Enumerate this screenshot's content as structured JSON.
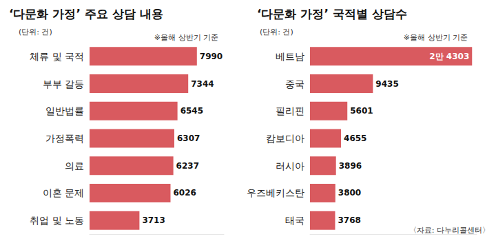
{
  "chart_data": [
    {
      "type": "bar",
      "title": "‘다문화 가정’ 주요 상담 내용",
      "subtitle": "(단위: 건)",
      "annotations": [
        "※올해 상반기 기준"
      ],
      "categories": [
        "체류 및 국적",
        "부부 갈등",
        "일반법률",
        "가정폭력",
        "의료",
        "이혼 문제",
        "취업 및 노동"
      ],
      "values": [
        7990,
        7344,
        6545,
        6307,
        6237,
        6026,
        3713
      ],
      "color": "#d95a5f",
      "orientation": "horizontal",
      "data_labels": true,
      "tick_labels": "y",
      "xlim": [
        0,
        10000
      ]
    },
    {
      "type": "bar",
      "title": "‘다문화 가정’ 국적별 상담수",
      "subtitle": "(단위: 건)",
      "annotations": [
        "※올해 상반기 기준",
        "〈자료: 다누리콜센터〉"
      ],
      "categories": [
        "베트남",
        "중국",
        "필리핀",
        "캄보디아",
        "러시아",
        "우즈베키스탄",
        "태국"
      ],
      "values": [
        24303,
        9435,
        5601,
        4655,
        3896,
        3800,
        3768
      ],
      "value_labels": [
        "2만 4303",
        "9435",
        "5601",
        "4655",
        "3896",
        "3800",
        "3768"
      ],
      "color": "#d95a5f",
      "orientation": "horizontal",
      "data_labels": true,
      "tick_labels": "y",
      "xlim": [
        0,
        25000
      ]
    }
  ]
}
